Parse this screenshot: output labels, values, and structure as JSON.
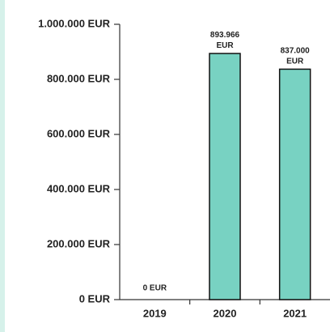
{
  "chart_data": {
    "type": "bar",
    "categories": [
      "2019",
      "2020",
      "2021"
    ],
    "values": [
      0,
      893966,
      837000
    ],
    "value_labels": [
      "0 EUR",
      "893.966 EUR",
      "837.000 EUR"
    ],
    "color": "#78d2c2",
    "ylim": [
      0,
      1000000
    ],
    "yticks": [
      {
        "value": 0,
        "label": "0 EUR"
      },
      {
        "value": 200000,
        "label": "200.000 EUR"
      },
      {
        "value": 400000,
        "label": "400.000 EUR"
      },
      {
        "value": 600000,
        "label": "600.000 EUR"
      },
      {
        "value": 800000,
        "label": "800.000 EUR"
      },
      {
        "value": 1000000,
        "label": "1.000.000 EUR"
      }
    ]
  }
}
